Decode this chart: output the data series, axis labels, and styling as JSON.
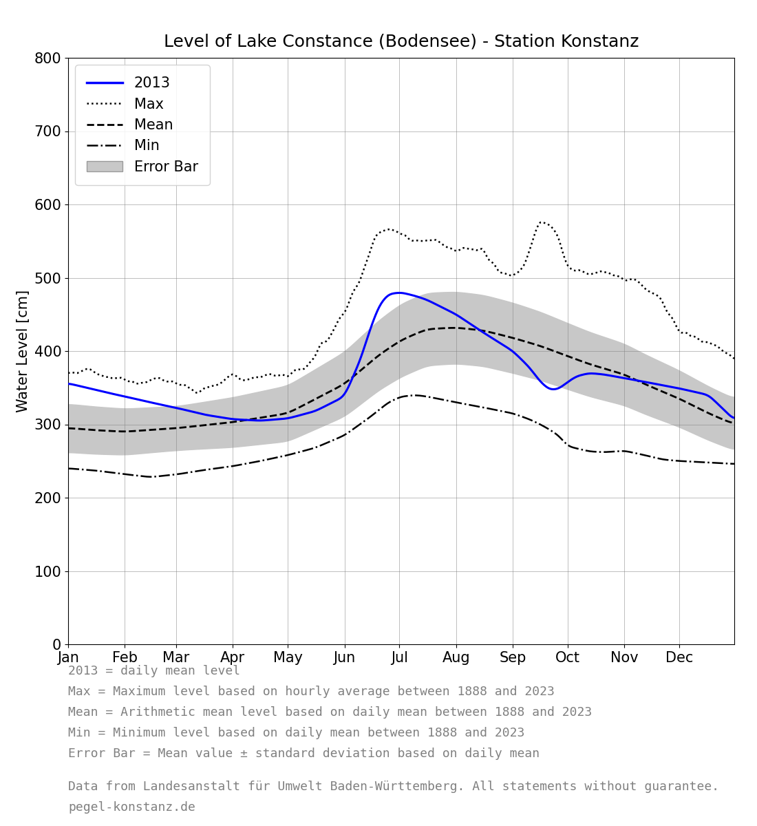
{
  "title": "Level of Lake Constance (Bodensee) - Station Konstanz",
  "ylabel": "Water Level [cm]",
  "ylim": [
    0,
    800
  ],
  "yticks": [
    0,
    100,
    200,
    300,
    400,
    500,
    600,
    700,
    800
  ],
  "months": [
    "Jan",
    "Feb",
    "Mar",
    "Apr",
    "May",
    "Jun",
    "Jul",
    "Aug",
    "Sep",
    "Oct",
    "Nov",
    "Dec"
  ],
  "notes_line1": "2013 = daily mean level",
  "notes_line2": "Max = Maximum level based on hourly average between 1888 and 2023",
  "notes_line3": "Mean = Arithmetic mean level based on daily mean between 1888 and 2023",
  "notes_line4": "Min = Minimum level based on daily mean between 1888 and 2023",
  "notes_line5": "Error Bar = Mean value ± standard deviation based on daily mean",
  "source_line1": "Data from Landesanstalt für Umwelt Baden-Württemberg. All statements without guarantee.",
  "source_line2": "pegel-konstanz.de",
  "color_2013": "#0000ff",
  "color_max": "#000000",
  "color_mean": "#000000",
  "color_min": "#000000",
  "color_error": "#c8c8c8",
  "title_fontsize": 18,
  "axis_fontsize": 15,
  "legend_fontsize": 15,
  "notes_fontsize": 13,
  "source_fontsize": 13
}
